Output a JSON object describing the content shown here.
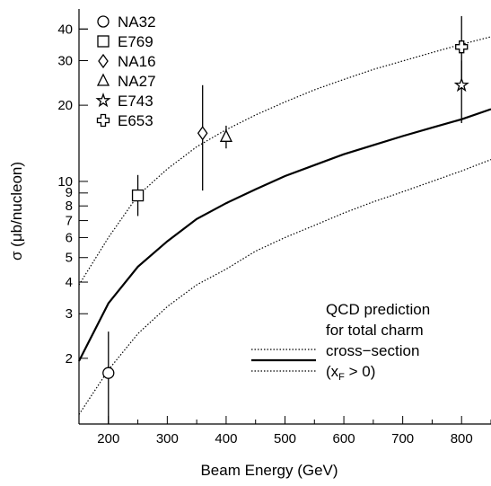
{
  "chart_data": {
    "type": "scatter",
    "title": "",
    "xlabel": "Beam Energy (GeV)",
    "ylabel": "σ (μb/nucleon)",
    "xlim": [
      150,
      850
    ],
    "ylim": [
      1.1,
      48
    ],
    "yscale": "log",
    "grid": false,
    "legend_position": "top-left",
    "xticks": [
      200,
      300,
      400,
      500,
      600,
      700,
      800
    ],
    "xtick_labels": [
      "200",
      "300",
      "400",
      "500",
      "600",
      "700",
      "800"
    ],
    "yticks_major": [
      2,
      3,
      4,
      5,
      6,
      7,
      8,
      9,
      10,
      20,
      30,
      40
    ],
    "ytick_labels": [
      {
        "value": 2,
        "label": "2"
      },
      {
        "value": 3,
        "label": "3"
      },
      {
        "value": 4,
        "label": "4"
      },
      {
        "value": 5,
        "label": "5"
      },
      {
        "value": 6,
        "label": "6"
      },
      {
        "value": 7,
        "label": "7"
      },
      {
        "value": 8,
        "label": "8"
      },
      {
        "value": 9,
        "label": "9"
      },
      {
        "value": 10,
        "label": "10"
      },
      {
        "value": 20,
        "label": "20"
      },
      {
        "value": 30,
        "label": "30"
      },
      {
        "value": 40,
        "label": "40"
      }
    ],
    "series": [
      {
        "name": "NA32",
        "marker": "circle",
        "points": [
          {
            "x": 200,
            "y": 1.75,
            "ylo": 1.1,
            "yhi": 2.55
          }
        ]
      },
      {
        "name": "E769",
        "marker": "square",
        "points": [
          {
            "x": 250,
            "y": 8.8,
            "ylo": 7.3,
            "yhi": 10.6
          }
        ]
      },
      {
        "name": "NA16",
        "marker": "diamond",
        "points": [
          {
            "x": 360,
            "y": 15.5,
            "ylo": 9.2,
            "yhi": 24.0
          }
        ]
      },
      {
        "name": "NA27",
        "marker": "triangle",
        "points": [
          {
            "x": 400,
            "y": 15.0,
            "ylo": 13.5,
            "yhi": 16.6
          }
        ]
      },
      {
        "name": "E743",
        "marker": "star",
        "points": [
          {
            "x": 800,
            "y": 24.0,
            "ylo": 17.0,
            "yhi": 30.0
          }
        ]
      },
      {
        "name": "E653",
        "marker": "cross",
        "points": [
          {
            "x": 800,
            "y": 34.0,
            "ylo": 25.0,
            "yhi": 45.0
          }
        ]
      }
    ],
    "curves": [
      {
        "name": "upper",
        "style": "dotted",
        "x": [
          150,
          200,
          250,
          300,
          350,
          400,
          450,
          500,
          550,
          600,
          650,
          700,
          750,
          800,
          850
        ],
        "y": [
          3.9,
          6.0,
          8.8,
          11.2,
          13.7,
          16.0,
          18.3,
          20.6,
          23.0,
          25.3,
          27.7,
          29.9,
          32.3,
          34.8,
          37.3
        ]
      },
      {
        "name": "central",
        "style": "solid",
        "x": [
          150,
          200,
          250,
          300,
          350,
          400,
          450,
          500,
          550,
          600,
          650,
          700,
          750,
          800,
          850
        ],
        "y": [
          1.95,
          3.3,
          4.6,
          5.8,
          7.1,
          8.2,
          9.3,
          10.5,
          11.6,
          12.8,
          13.9,
          15.1,
          16.3,
          17.6,
          19.3
        ]
      },
      {
        "name": "lower",
        "style": "dotted",
        "x": [
          150,
          200,
          250,
          300,
          350,
          400,
          450,
          500,
          550,
          600,
          650,
          700,
          750,
          800,
          850
        ],
        "y": [
          1.2,
          1.8,
          2.5,
          3.2,
          3.9,
          4.5,
          5.3,
          6.0,
          6.7,
          7.5,
          8.3,
          9.1,
          10.0,
          11.0,
          12.2
        ]
      }
    ],
    "annotation": {
      "lines": [
        "QCD prediction",
        "for total charm",
        "cross−section",
        "(x",
        "F",
        " > 0)"
      ]
    }
  }
}
